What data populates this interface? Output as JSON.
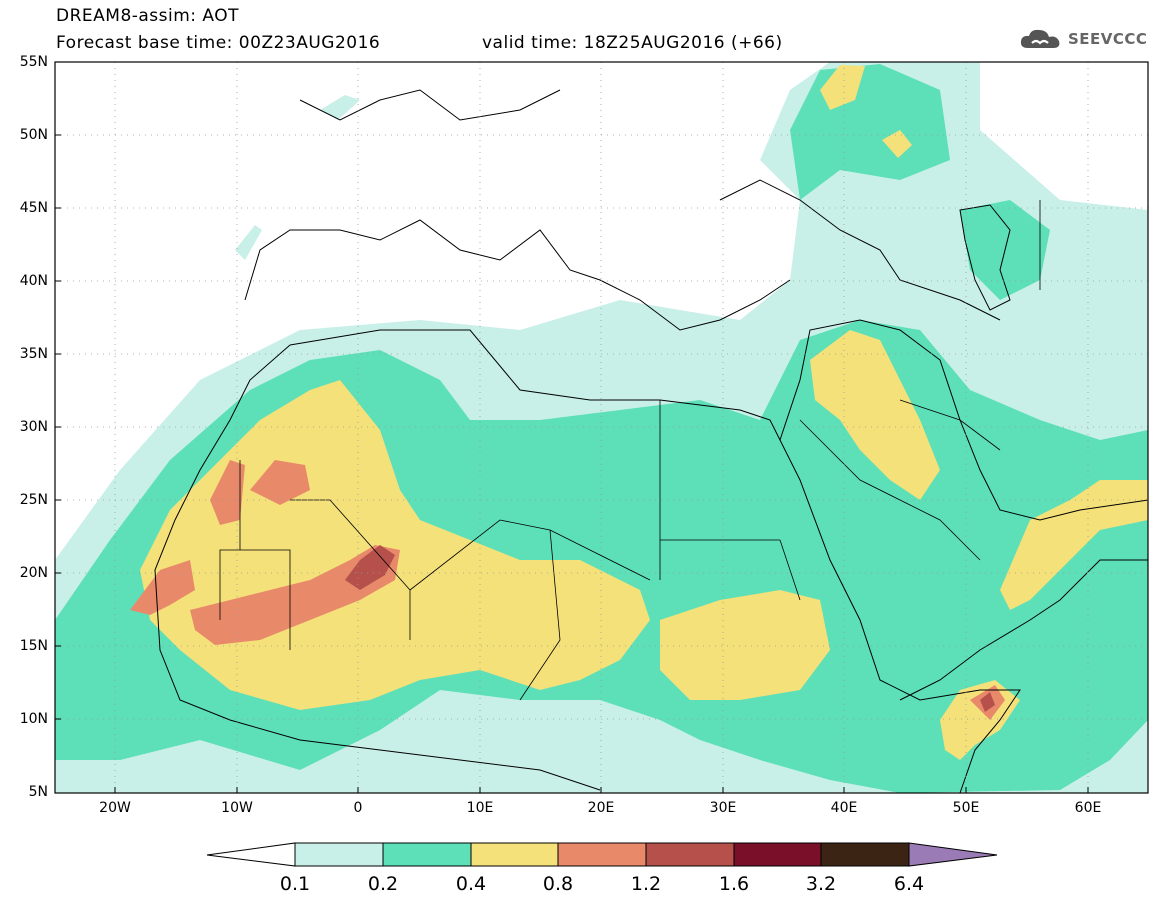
{
  "header": {
    "title": "DREAM8-assim: AOT",
    "base_time": "Forecast base time: 00Z23AUG2016",
    "valid_time": "valid time: 18Z25AUG2016 (+66)"
  },
  "logo": {
    "text": "SEEVCCC",
    "icon": "cloud-icon"
  },
  "map": {
    "lon_range": [
      -25,
      65
    ],
    "lat_range": [
      5,
      55
    ],
    "y_ticks": [
      "55N",
      "50N",
      "45N",
      "40N",
      "35N",
      "30N",
      "25N",
      "20N",
      "15N",
      "10N",
      "5N"
    ],
    "x_ticks": [
      "20W",
      "10W",
      "0",
      "10E",
      "20E",
      "30E",
      "40E",
      "50E",
      "60E"
    ]
  },
  "legend": {
    "levels": [
      "0.1",
      "0.2",
      "0.4",
      "0.8",
      "1.2",
      "1.6",
      "3.2",
      "6.4"
    ],
    "colors": [
      "#c8f0e8",
      "#5ddfb8",
      "#f5e17a",
      "#e8896a",
      "#b5504a",
      "#7a0f2a",
      "#3b2414",
      "#9a7bb5"
    ],
    "background_color": "#ffffff"
  }
}
